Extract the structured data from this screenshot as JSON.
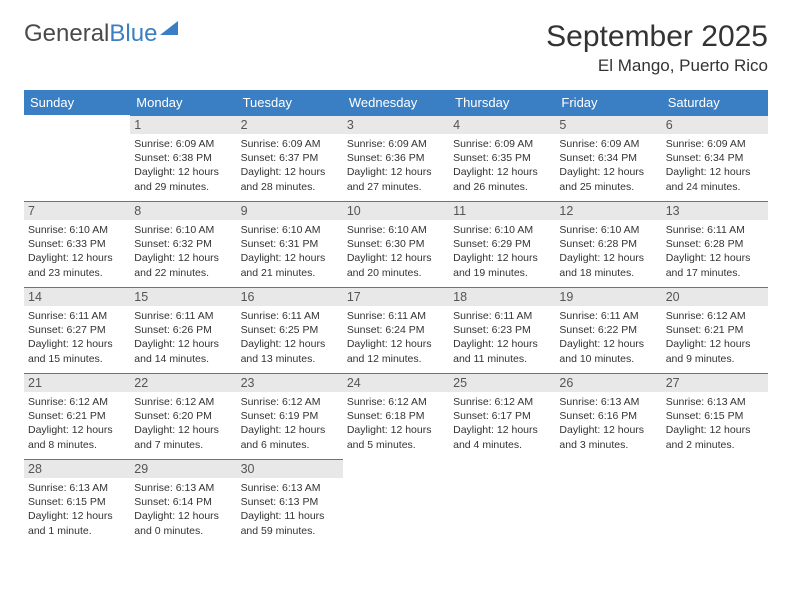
{
  "logo": {
    "part1": "General",
    "part2": "Blue"
  },
  "title": "September 2025",
  "location": "El Mango, Puerto Rico",
  "colors": {
    "brand": "#3a7fc4",
    "header_bg": "#3a7fc4",
    "header_fg": "#ffffff",
    "daynum_bg": "#e8e8e8",
    "text": "#333333"
  },
  "weekdays": [
    "Sunday",
    "Monday",
    "Tuesday",
    "Wednesday",
    "Thursday",
    "Friday",
    "Saturday"
  ],
  "weeks": [
    [
      null,
      {
        "n": "1",
        "sr": "Sunrise: 6:09 AM",
        "ss": "Sunset: 6:38 PM",
        "d1": "Daylight: 12 hours",
        "d2": "and 29 minutes."
      },
      {
        "n": "2",
        "sr": "Sunrise: 6:09 AM",
        "ss": "Sunset: 6:37 PM",
        "d1": "Daylight: 12 hours",
        "d2": "and 28 minutes."
      },
      {
        "n": "3",
        "sr": "Sunrise: 6:09 AM",
        "ss": "Sunset: 6:36 PM",
        "d1": "Daylight: 12 hours",
        "d2": "and 27 minutes."
      },
      {
        "n": "4",
        "sr": "Sunrise: 6:09 AM",
        "ss": "Sunset: 6:35 PM",
        "d1": "Daylight: 12 hours",
        "d2": "and 26 minutes."
      },
      {
        "n": "5",
        "sr": "Sunrise: 6:09 AM",
        "ss": "Sunset: 6:34 PM",
        "d1": "Daylight: 12 hours",
        "d2": "and 25 minutes."
      },
      {
        "n": "6",
        "sr": "Sunrise: 6:09 AM",
        "ss": "Sunset: 6:34 PM",
        "d1": "Daylight: 12 hours",
        "d2": "and 24 minutes."
      }
    ],
    [
      {
        "n": "7",
        "sr": "Sunrise: 6:10 AM",
        "ss": "Sunset: 6:33 PM",
        "d1": "Daylight: 12 hours",
        "d2": "and 23 minutes."
      },
      {
        "n": "8",
        "sr": "Sunrise: 6:10 AM",
        "ss": "Sunset: 6:32 PM",
        "d1": "Daylight: 12 hours",
        "d2": "and 22 minutes."
      },
      {
        "n": "9",
        "sr": "Sunrise: 6:10 AM",
        "ss": "Sunset: 6:31 PM",
        "d1": "Daylight: 12 hours",
        "d2": "and 21 minutes."
      },
      {
        "n": "10",
        "sr": "Sunrise: 6:10 AM",
        "ss": "Sunset: 6:30 PM",
        "d1": "Daylight: 12 hours",
        "d2": "and 20 minutes."
      },
      {
        "n": "11",
        "sr": "Sunrise: 6:10 AM",
        "ss": "Sunset: 6:29 PM",
        "d1": "Daylight: 12 hours",
        "d2": "and 19 minutes."
      },
      {
        "n": "12",
        "sr": "Sunrise: 6:10 AM",
        "ss": "Sunset: 6:28 PM",
        "d1": "Daylight: 12 hours",
        "d2": "and 18 minutes."
      },
      {
        "n": "13",
        "sr": "Sunrise: 6:11 AM",
        "ss": "Sunset: 6:28 PM",
        "d1": "Daylight: 12 hours",
        "d2": "and 17 minutes."
      }
    ],
    [
      {
        "n": "14",
        "sr": "Sunrise: 6:11 AM",
        "ss": "Sunset: 6:27 PM",
        "d1": "Daylight: 12 hours",
        "d2": "and 15 minutes."
      },
      {
        "n": "15",
        "sr": "Sunrise: 6:11 AM",
        "ss": "Sunset: 6:26 PM",
        "d1": "Daylight: 12 hours",
        "d2": "and 14 minutes."
      },
      {
        "n": "16",
        "sr": "Sunrise: 6:11 AM",
        "ss": "Sunset: 6:25 PM",
        "d1": "Daylight: 12 hours",
        "d2": "and 13 minutes."
      },
      {
        "n": "17",
        "sr": "Sunrise: 6:11 AM",
        "ss": "Sunset: 6:24 PM",
        "d1": "Daylight: 12 hours",
        "d2": "and 12 minutes."
      },
      {
        "n": "18",
        "sr": "Sunrise: 6:11 AM",
        "ss": "Sunset: 6:23 PM",
        "d1": "Daylight: 12 hours",
        "d2": "and 11 minutes."
      },
      {
        "n": "19",
        "sr": "Sunrise: 6:11 AM",
        "ss": "Sunset: 6:22 PM",
        "d1": "Daylight: 12 hours",
        "d2": "and 10 minutes."
      },
      {
        "n": "20",
        "sr": "Sunrise: 6:12 AM",
        "ss": "Sunset: 6:21 PM",
        "d1": "Daylight: 12 hours",
        "d2": "and 9 minutes."
      }
    ],
    [
      {
        "n": "21",
        "sr": "Sunrise: 6:12 AM",
        "ss": "Sunset: 6:21 PM",
        "d1": "Daylight: 12 hours",
        "d2": "and 8 minutes."
      },
      {
        "n": "22",
        "sr": "Sunrise: 6:12 AM",
        "ss": "Sunset: 6:20 PM",
        "d1": "Daylight: 12 hours",
        "d2": "and 7 minutes."
      },
      {
        "n": "23",
        "sr": "Sunrise: 6:12 AM",
        "ss": "Sunset: 6:19 PM",
        "d1": "Daylight: 12 hours",
        "d2": "and 6 minutes."
      },
      {
        "n": "24",
        "sr": "Sunrise: 6:12 AM",
        "ss": "Sunset: 6:18 PM",
        "d1": "Daylight: 12 hours",
        "d2": "and 5 minutes."
      },
      {
        "n": "25",
        "sr": "Sunrise: 6:12 AM",
        "ss": "Sunset: 6:17 PM",
        "d1": "Daylight: 12 hours",
        "d2": "and 4 minutes."
      },
      {
        "n": "26",
        "sr": "Sunrise: 6:13 AM",
        "ss": "Sunset: 6:16 PM",
        "d1": "Daylight: 12 hours",
        "d2": "and 3 minutes."
      },
      {
        "n": "27",
        "sr": "Sunrise: 6:13 AM",
        "ss": "Sunset: 6:15 PM",
        "d1": "Daylight: 12 hours",
        "d2": "and 2 minutes."
      }
    ],
    [
      {
        "n": "28",
        "sr": "Sunrise: 6:13 AM",
        "ss": "Sunset: 6:15 PM",
        "d1": "Daylight: 12 hours",
        "d2": "and 1 minute."
      },
      {
        "n": "29",
        "sr": "Sunrise: 6:13 AM",
        "ss": "Sunset: 6:14 PM",
        "d1": "Daylight: 12 hours",
        "d2": "and 0 minutes."
      },
      {
        "n": "30",
        "sr": "Sunrise: 6:13 AM",
        "ss": "Sunset: 6:13 PM",
        "d1": "Daylight: 11 hours",
        "d2": "and 59 minutes."
      },
      null,
      null,
      null,
      null
    ]
  ]
}
